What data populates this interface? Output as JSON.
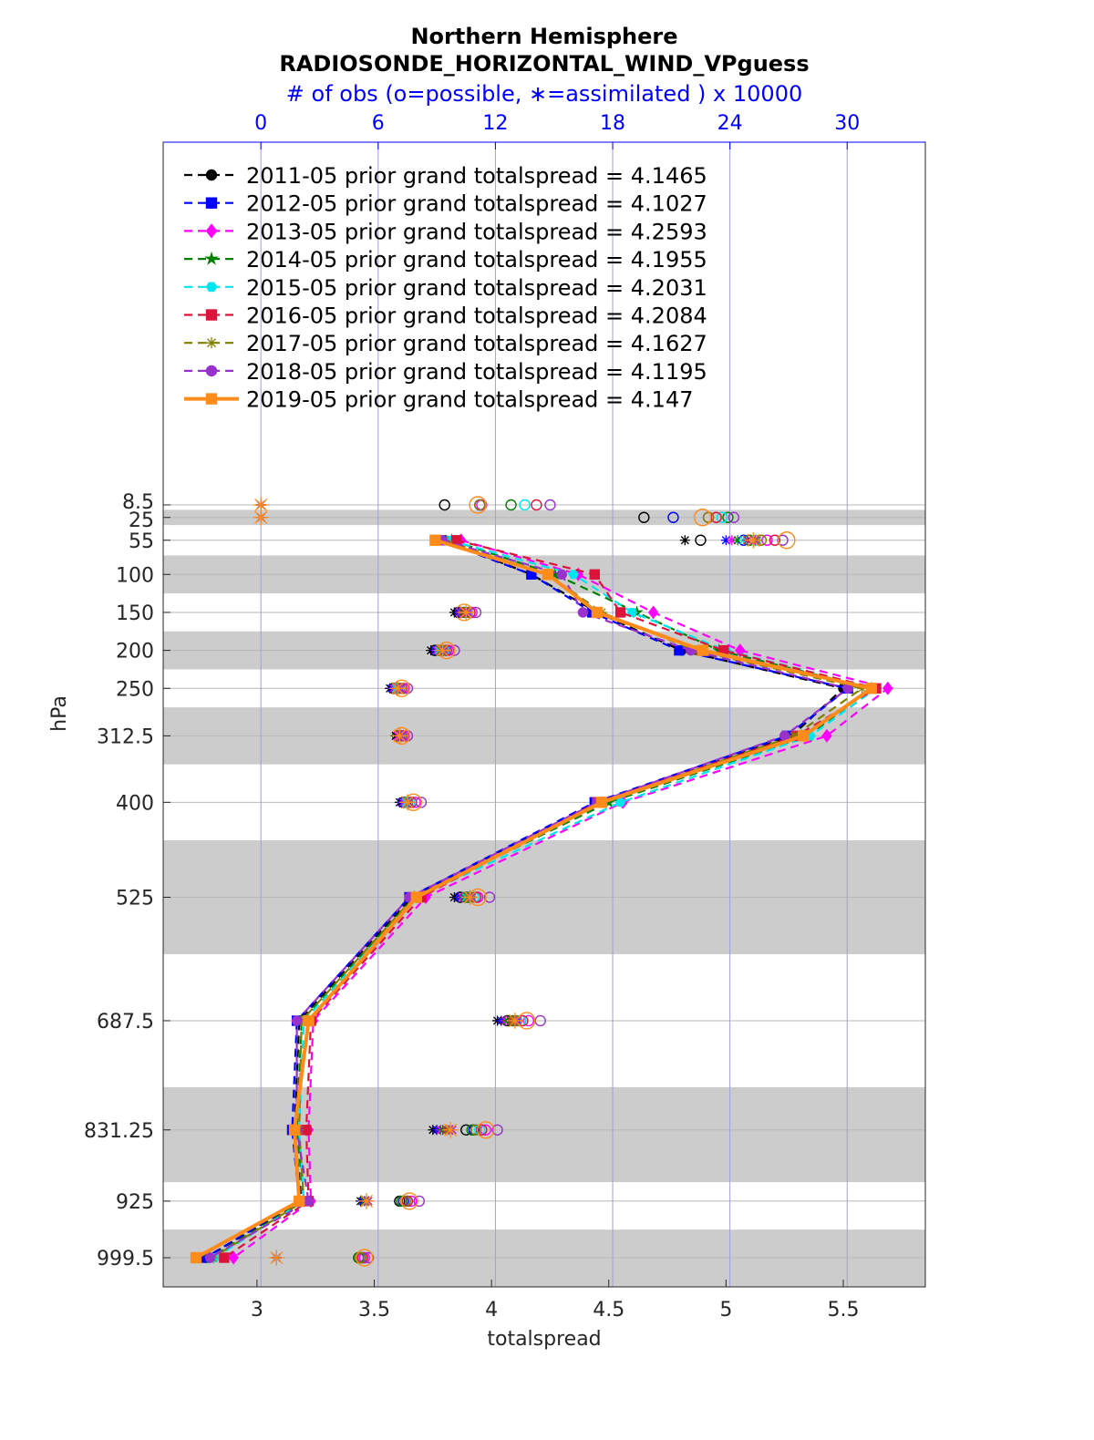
{
  "chart_data": {
    "type": "line",
    "title": "Northern Hemisphere",
    "subtitle": "RADIOSONDE_HORIZONTAL_WIND_VPguess",
    "top_axis_label": "# of obs (o=possible, ∗=assimilated ) x 10000",
    "xlabel": "totalspread",
    "ylabel": "hPa",
    "xlim": [
      2.6,
      5.85
    ],
    "x_ticks": [
      3,
      3.5,
      4,
      4.5,
      5,
      5.5
    ],
    "x_tick_labels": [
      "3",
      "3.5",
      "4",
      "4.5",
      "5",
      "5.5"
    ],
    "top_xlim": [
      -5,
      34
    ],
    "top_ticks": [
      0,
      6,
      12,
      18,
      24,
      30
    ],
    "top_tick_labels": [
      "0",
      "6",
      "12",
      "18",
      "24",
      "30"
    ],
    "y_ticks": [
      8.5,
      25,
      55,
      100,
      150,
      200,
      250,
      312.5,
      400,
      525,
      687.5,
      831.25,
      925,
      999.5
    ],
    "y_tick_labels": [
      "8.5",
      "25",
      "55",
      "100",
      "150",
      "200",
      "250",
      "312.5",
      "400",
      "525",
      "687.5",
      "831.25",
      "925",
      "999.5"
    ],
    "y_direction": "reversed",
    "grid": true,
    "legend_position": "top-left",
    "shaded_bands_hPa": [
      [
        15,
        35
      ],
      [
        75,
        125
      ],
      [
        175,
        225
      ],
      [
        275,
        350
      ],
      [
        450,
        600
      ],
      [
        775,
        900
      ],
      [
        962.5,
        1037.5
      ]
    ],
    "levels": [
      55,
      100,
      150,
      200,
      250,
      312.5,
      400,
      525,
      687.5,
      831.25,
      925,
      999.5
    ],
    "series": [
      {
        "name": "2011-05",
        "label": "2011-05 prior grand totalspread = 4.1465",
        "color": "#000000",
        "dash": "dash",
        "marker": "circle",
        "values": [
          3.8,
          4.17,
          4.45,
          4.81,
          5.5,
          5.28,
          4.45,
          3.66,
          3.18,
          3.16,
          3.19,
          2.78
        ]
      },
      {
        "name": "2012-05",
        "label": "2012-05 prior grand totalspread = 4.1027",
        "color": "#0000ff",
        "dash": "dash",
        "marker": "square",
        "values": [
          3.78,
          4.17,
          4.43,
          4.8,
          5.52,
          5.26,
          4.44,
          3.65,
          3.17,
          3.15,
          3.18,
          2.78
        ]
      },
      {
        "name": "2013-05",
        "label": "2013-05 prior grand totalspread = 4.2593",
        "color": "#ff00ff",
        "dash": "dash",
        "marker": "diamond",
        "values": [
          3.87,
          4.37,
          4.69,
          5.06,
          5.69,
          5.43,
          4.56,
          3.72,
          3.24,
          3.22,
          3.23,
          2.9
        ]
      },
      {
        "name": "2014-05",
        "label": "2014-05 prior grand totalspread = 4.1955",
        "color": "#008000",
        "dash": "dash",
        "marker": "star",
        "values": [
          3.83,
          4.27,
          4.62,
          4.97,
          5.62,
          5.35,
          4.5,
          3.67,
          3.19,
          3.17,
          3.2,
          2.8
        ]
      },
      {
        "name": "2015-05",
        "label": "2015-05 prior grand totalspread = 4.2031",
        "color": "#00e5ee",
        "dash": "dash",
        "marker": "hexagon",
        "values": [
          3.82,
          4.35,
          4.6,
          5.0,
          5.64,
          5.36,
          4.55,
          3.68,
          3.2,
          3.18,
          3.2,
          2.82
        ]
      },
      {
        "name": "2016-05",
        "label": "2016-05 prior grand totalspread = 4.2084",
        "color": "#dc143c",
        "dash": "dash",
        "marker": "filled-square",
        "values": [
          3.85,
          4.44,
          4.55,
          4.99,
          5.64,
          5.3,
          4.45,
          3.7,
          3.23,
          3.21,
          3.22,
          2.86
        ]
      },
      {
        "name": "2017-05",
        "label": "2017-05 prior grand totalspread = 4.1627",
        "color": "#808000",
        "dash": "dash",
        "marker": "asterisk",
        "values": [
          3.8,
          4.24,
          4.47,
          4.87,
          5.58,
          5.29,
          4.47,
          3.67,
          3.19,
          3.18,
          3.2,
          2.81
        ]
      },
      {
        "name": "2018-05",
        "label": "2018-05 prior grand totalspread = 4.1195",
        "color": "#9932cc",
        "dash": "dash",
        "marker": "circle",
        "values": [
          3.79,
          4.3,
          4.39,
          4.85,
          5.52,
          5.25,
          4.45,
          3.65,
          3.17,
          3.17,
          3.22,
          2.8
        ]
      },
      {
        "name": "2019-05",
        "label": "2019-05 prior grand totalspread = 4.147",
        "color": "#ff8c1a",
        "dash": "solid",
        "marker": "square",
        "values": [
          3.76,
          4.24,
          4.45,
          4.9,
          5.62,
          5.33,
          4.47,
          3.68,
          3.22,
          3.16,
          3.18,
          2.74
        ]
      }
    ],
    "obs_counts": {
      "unit": "x 10000",
      "palette": [
        "#000000",
        "#0000ff",
        "#ff00ff",
        "#008000",
        "#00e5ee",
        "#dc143c",
        "#808000",
        "#9932cc",
        "#ff8c1a"
      ],
      "rows": [
        {
          "level": 8.5,
          "possible": [
            9.4,
            11.2,
            11.3,
            12.8,
            13.5,
            14.1,
            11.2,
            14.8,
            11.1
          ],
          "assimilated": [
            0,
            0,
            0,
            0,
            0,
            0,
            0,
            0,
            0
          ]
        },
        {
          "level": 25,
          "possible": [
            19.6,
            21.1,
            22.9,
            23.9,
            23.6,
            23.3,
            22.9,
            24.2,
            22.6
          ],
          "assimilated": [
            0,
            0,
            0,
            0,
            0,
            0,
            0,
            0,
            0
          ]
        },
        {
          "level": 55,
          "possible": [
            22.5,
            24.7,
            25.9,
            25.0,
            25.3,
            26.3,
            25.6,
            26.7,
            26.9
          ],
          "assimilated": [
            21.7,
            23.8,
            24.1,
            24.4,
            24.7,
            24.9,
            25.4,
            25.3,
            25.2
          ]
        },
        {
          "level": 150,
          "possible": [
            10.1,
            10.4,
            10.8,
            10.3,
            10.6,
            10.7,
            10.5,
            11.0,
            10.4
          ],
          "assimilated": [
            9.9,
            10.1,
            10.2,
            10.3,
            10.4,
            10.4,
            10.5,
            10.6,
            10.5
          ]
        },
        {
          "level": 200,
          "possible": [
            8.9,
            9.2,
            9.6,
            9.1,
            9.4,
            9.5,
            9.3,
            9.9,
            9.5
          ],
          "assimilated": [
            8.7,
            8.9,
            9.0,
            9.1,
            9.1,
            9.2,
            9.2,
            9.4,
            9.3
          ]
        },
        {
          "level": 250,
          "possible": [
            6.8,
            7.0,
            7.3,
            6.9,
            7.1,
            7.2,
            7.1,
            7.5,
            7.2
          ],
          "assimilated": [
            6.6,
            6.7,
            6.8,
            6.9,
            6.9,
            7.0,
            7.0,
            7.1,
            7.0
          ]
        },
        {
          "level": 312.5,
          "possible": [
            7.0,
            7.1,
            7.3,
            7.0,
            7.2,
            7.2,
            7.1,
            7.5,
            7.2
          ],
          "assimilated": [
            6.9,
            7.0,
            7.0,
            7.1,
            7.1,
            7.1,
            7.1,
            7.2,
            7.1
          ]
        },
        {
          "level": 400,
          "possible": [
            7.3,
            7.5,
            7.9,
            7.4,
            7.6,
            7.7,
            7.5,
            8.2,
            7.8
          ],
          "assimilated": [
            7.1,
            7.2,
            7.3,
            7.4,
            7.4,
            7.5,
            7.5,
            7.6,
            7.5
          ]
        },
        {
          "level": 525,
          "possible": [
            10.2,
            10.6,
            11.1,
            10.5,
            10.9,
            11.0,
            10.7,
            11.7,
            11.1
          ],
          "assimilated": [
            9.9,
            10.1,
            10.3,
            10.4,
            10.5,
            10.6,
            10.6,
            10.8,
            10.7
          ]
        },
        {
          "level": 687.5,
          "possible": [
            12.6,
            13.0,
            13.7,
            12.9,
            13.3,
            13.4,
            13.1,
            14.3,
            13.6
          ],
          "assimilated": [
            12.1,
            12.3,
            12.5,
            12.6,
            12.8,
            12.8,
            12.9,
            13.1,
            13.0
          ]
        },
        {
          "level": 831.25,
          "possible": [
            10.5,
            10.9,
            11.5,
            10.8,
            11.2,
            11.3,
            11.0,
            12.1,
            11.5
          ],
          "assimilated": [
            8.8,
            9.0,
            9.2,
            9.3,
            9.5,
            9.5,
            9.6,
            9.8,
            9.7
          ]
        },
        {
          "level": 925,
          "possible": [
            7.1,
            7.3,
            7.7,
            7.2,
            7.5,
            7.5,
            7.4,
            8.1,
            7.6
          ],
          "assimilated": [
            5.1,
            5.2,
            5.3,
            5.3,
            5.4,
            5.4,
            5.5,
            5.5,
            5.4
          ]
        },
        {
          "level": 999.5,
          "possible": [
            5.0,
            5.1,
            5.3,
            5.0,
            5.2,
            5.2,
            5.1,
            5.5,
            5.3
          ],
          "assimilated": [
            0.8,
            0.8,
            0.8,
            0.8,
            0.8,
            0.8,
            0.8,
            0.8,
            0.8
          ]
        }
      ]
    }
  }
}
